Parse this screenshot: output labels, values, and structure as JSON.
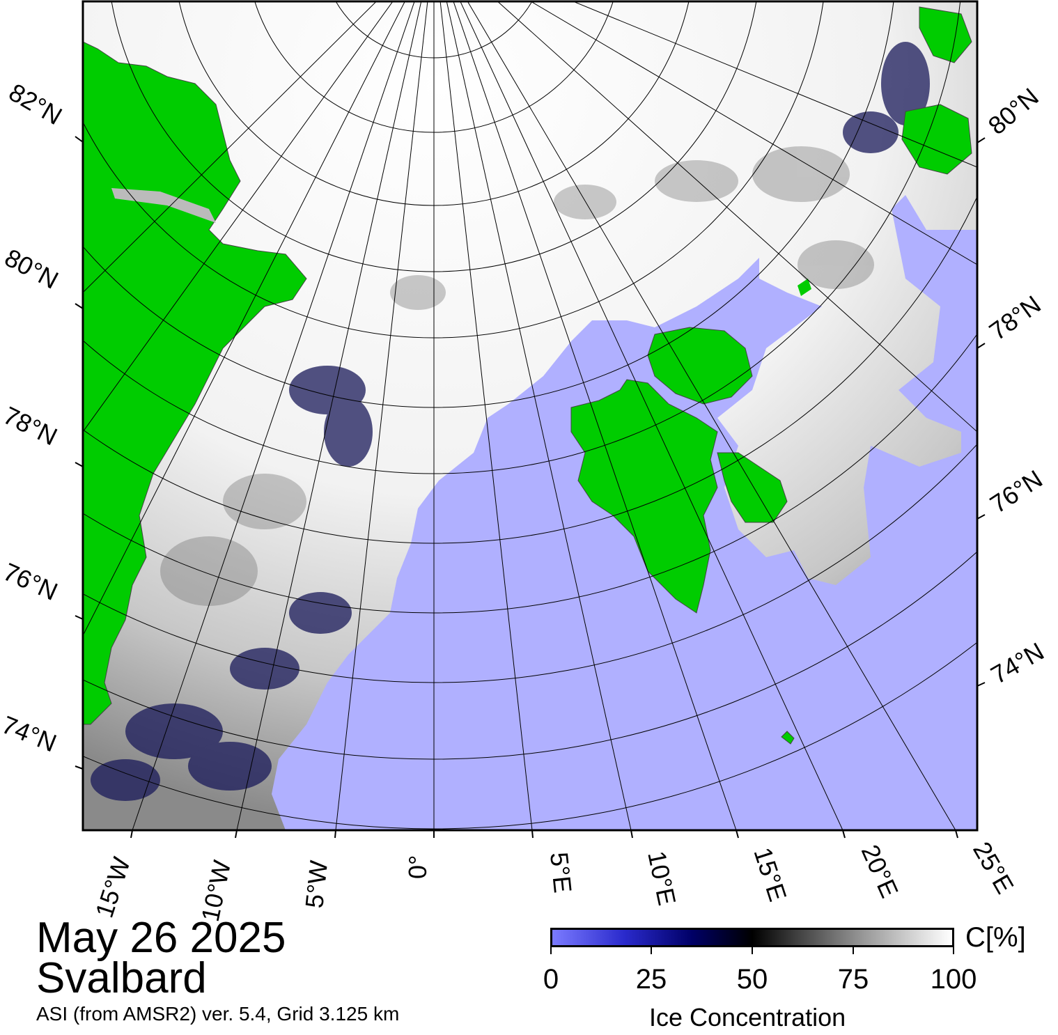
{
  "map": {
    "date": "May 26 2025",
    "region": "Svalbard",
    "credit": "ASI (from AMSR2) ver. 5.4,  Grid 3.125 km",
    "left_lat_labels": [
      "82°N",
      "80°N",
      "78°N",
      "76°N",
      "74°N"
    ],
    "right_lat_labels": [
      "80°N",
      "78°N",
      "76°N",
      "74°N"
    ],
    "lon_labels": [
      "15°W",
      "10°W",
      "5°W",
      "0°",
      "5°E",
      "10°E",
      "15°E",
      "20°E",
      "25°E"
    ],
    "colors": {
      "land": "#00cc00",
      "water": "#b0b0ff",
      "ice_high": "#ffffff",
      "ice_mid": "#000000",
      "ice_low": "#000066",
      "grid": "#000000"
    }
  },
  "colorbar": {
    "unit": "C[%]",
    "title": "Ice Concentration",
    "ticks": [
      "0",
      "25",
      "50",
      "75",
      "100"
    ]
  }
}
